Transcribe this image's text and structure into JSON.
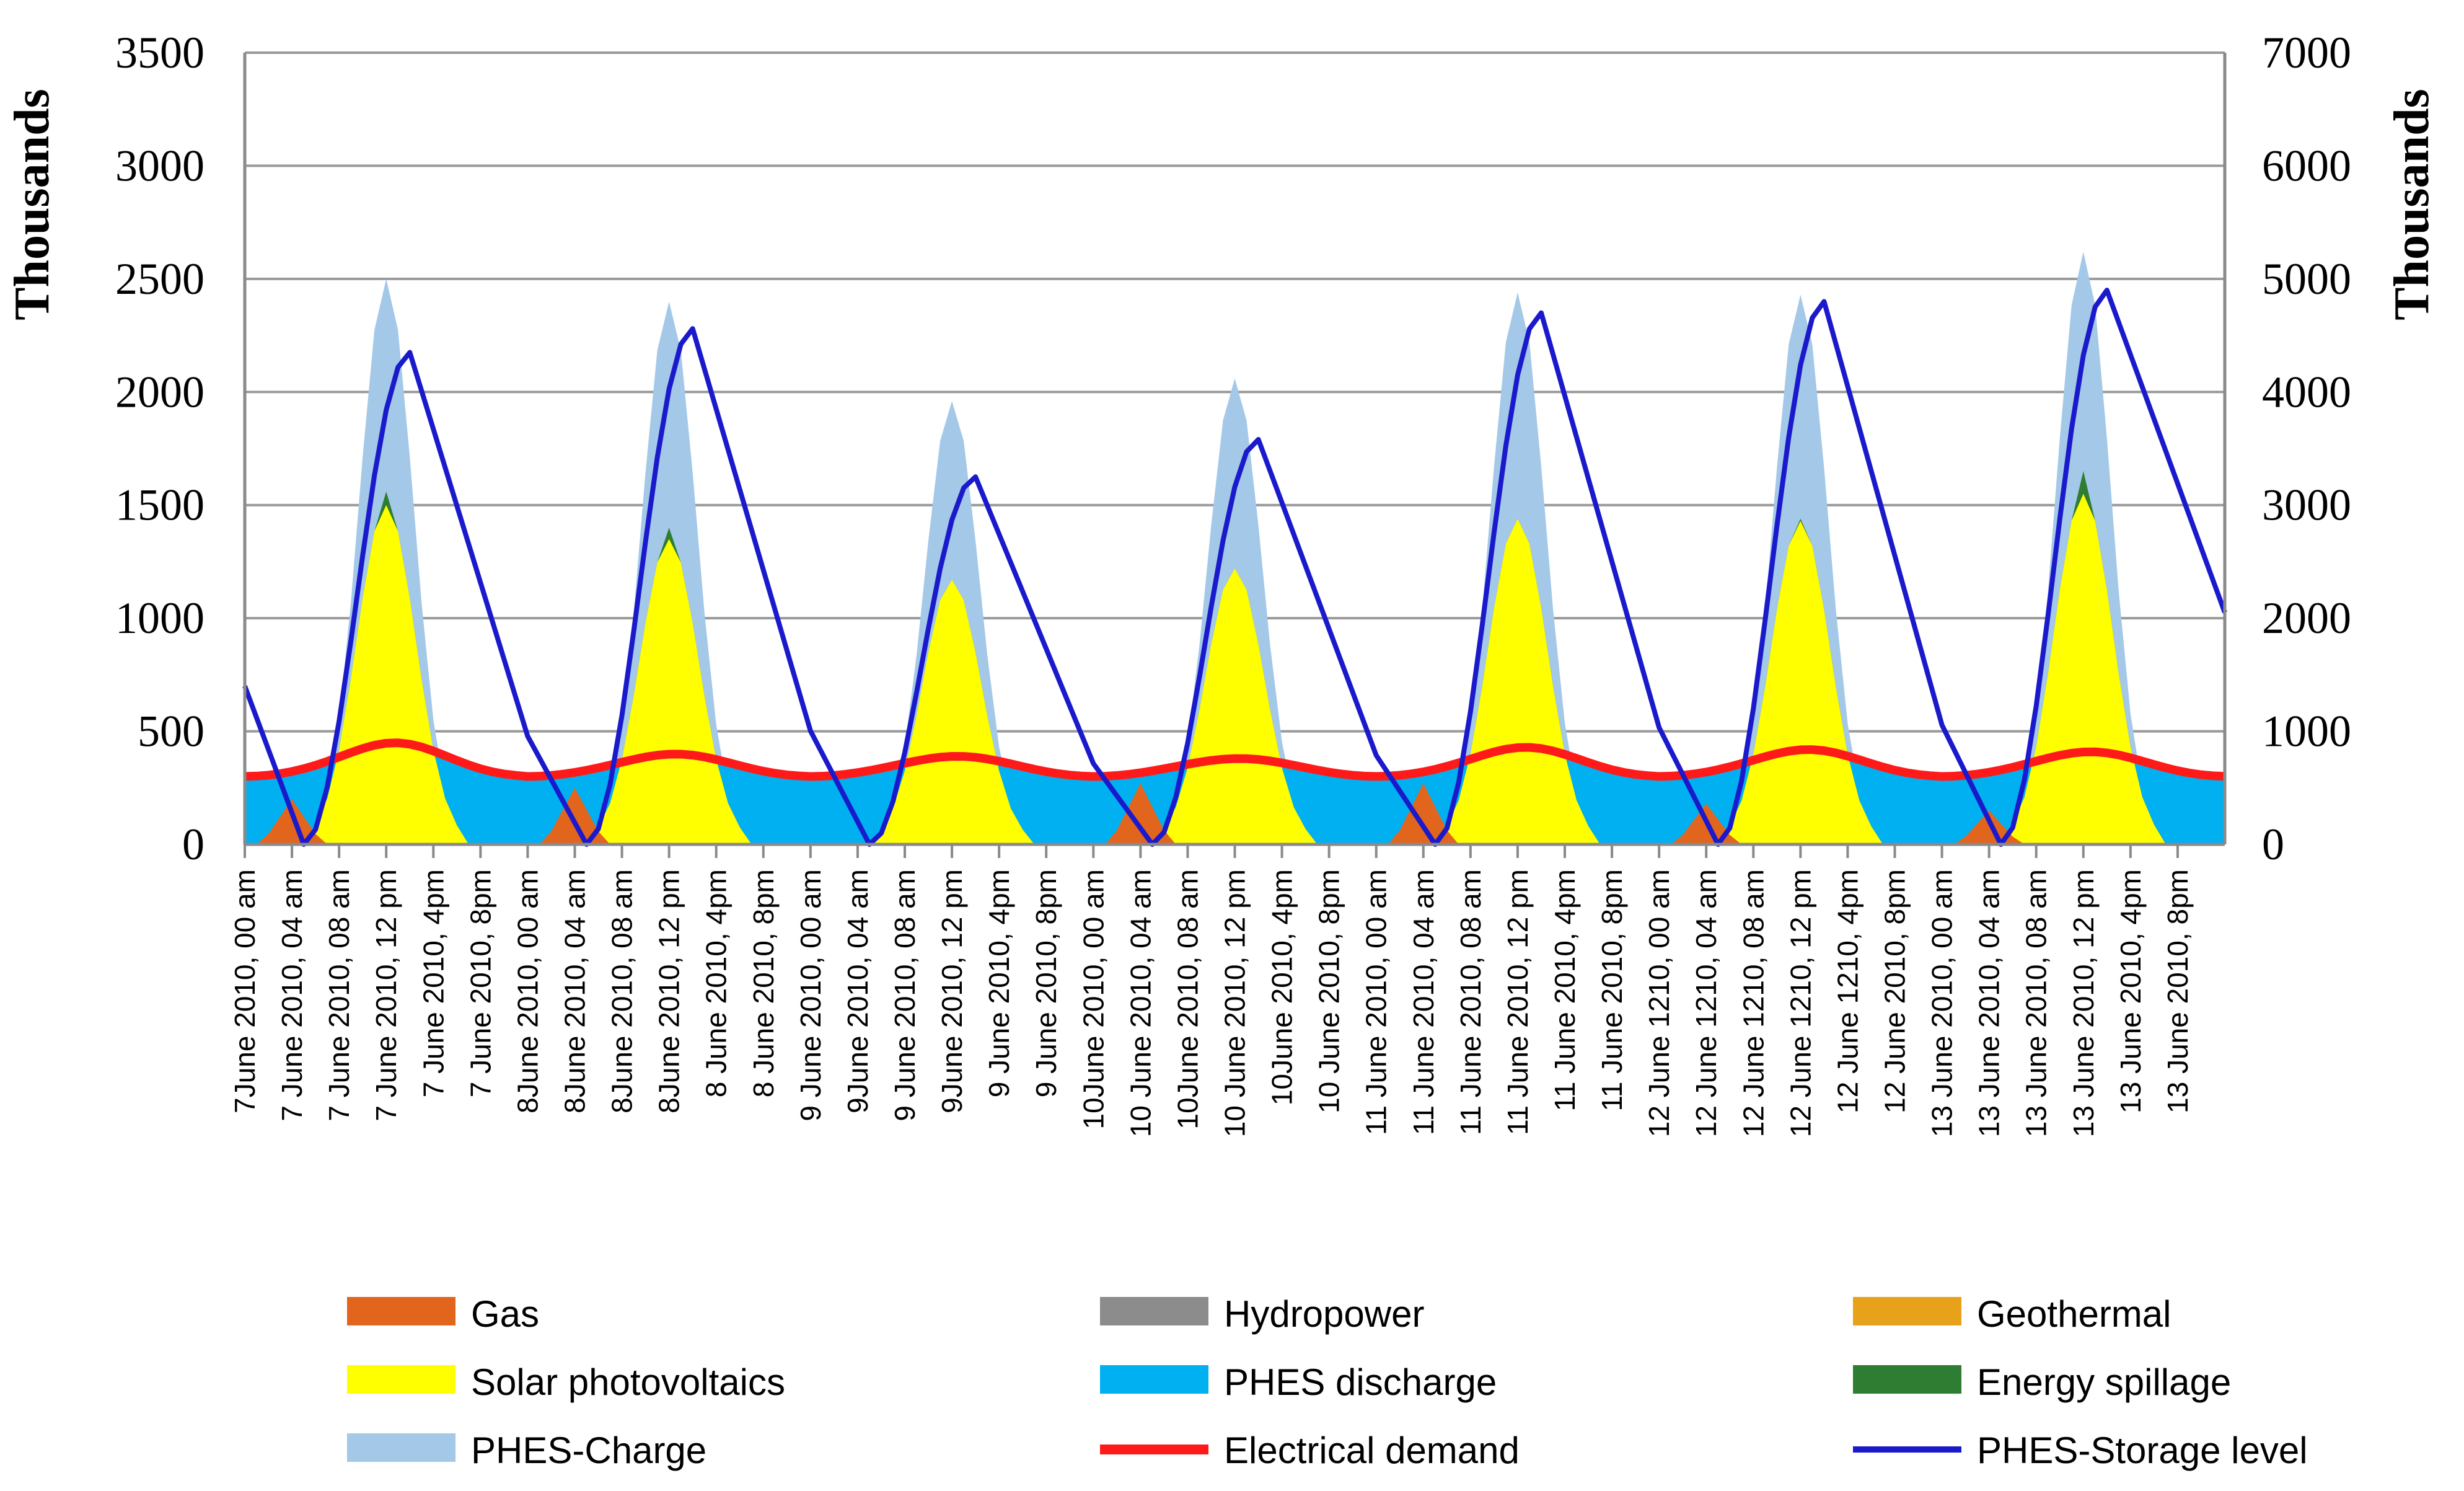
{
  "chart_data": {
    "type": "area",
    "y_left": {
      "label": "Thousands",
      "ylim": [
        0,
        3500
      ],
      "ticks": [
        0,
        500,
        1000,
        1500,
        2000,
        2500,
        3000,
        3500
      ]
    },
    "y_right": {
      "label": "Thousands",
      "ylim": [
        0,
        7000
      ],
      "ticks": [
        0,
        1000,
        2000,
        3000,
        4000,
        5000,
        6000,
        7000
      ]
    },
    "grid": true,
    "legend_position": "bottom",
    "x_hours": 168,
    "x_tick_hours": [
      0,
      4,
      8,
      12,
      16,
      20,
      24,
      28,
      32,
      36,
      40,
      44,
      48,
      52,
      56,
      60,
      64,
      68,
      72,
      76,
      80,
      84,
      88,
      92,
      96,
      100,
      104,
      108,
      112,
      116,
      120,
      124,
      128,
      132,
      136,
      140,
      144,
      148,
      152,
      156,
      160,
      164
    ],
    "x_tick_labels": [
      "7June 2010, 00 am",
      "7 June 2010, 04 am",
      "7 June 2010, 08 am",
      "7 June 2010, 12 pm",
      "7 June 2010, 4pm",
      "7 June 2010, 8pm",
      "8June 2010, 00 am",
      "8June 2010, 04 am",
      "8June 2010, 08 am",
      "8June 2010, 12 pm",
      "8 June 2010, 4pm",
      "8 June 2010, 8pm",
      "9 June 2010, 00 am",
      "9June 2010, 04 am",
      "9 June 2010, 08 am",
      "9June 2010, 12 pm",
      "9 June 2010, 4pm",
      "9 June 2010, 8pm",
      "10June 2010, 00 am",
      "10 June 2010, 04 am",
      "10June 2010, 08 am",
      "10 June 2010, 12 pm",
      "10June 2010, 4pm",
      "10 June 2010, 8pm",
      "11 June 2010, 00 am",
      "11 June 2010, 04 am",
      "11 June 2010, 08 am",
      "11 June 2010, 12 pm",
      "11 June 2010, 4pm",
      "11 June 2010, 8pm",
      "12 June 1210, 00 am",
      "12 June 1210, 04 am",
      "12 June 1210, 08 am",
      "12 June 1210, 12 pm",
      "12 June 1210, 4pm",
      "12 June 2010, 8pm",
      "13 June 2010, 00 am",
      "13 June 2010, 04 am",
      "13 June 2010, 08 am",
      "13 June 2010, 12 pm",
      "13 June 2010, 4pm",
      "13 June 2010, 8pm"
    ],
    "days": [
      {
        "solar_peak": 1500,
        "charge_peak": 2500,
        "storage_peak": 4350,
        "storage_start": 1400,
        "gas": 200,
        "spill": 1560,
        "demand_peak": 470
      },
      {
        "solar_peak": 1350,
        "charge_peak": 2400,
        "storage_peak": 4560,
        "storage_start": 650,
        "gas": 250,
        "spill": 1400,
        "demand_peak": 420
      },
      {
        "solar_peak": 1170,
        "charge_peak": 1960,
        "storage_peak": 3250,
        "storage_start": 560,
        "gas": 0,
        "spill": 1170,
        "demand_peak": 410
      },
      {
        "solar_peak": 1220,
        "charge_peak": 2060,
        "storage_peak": 3580,
        "storage_start": 1000,
        "gas": 270,
        "spill": 1220,
        "demand_peak": 400
      },
      {
        "solar_peak": 1440,
        "charge_peak": 2440,
        "storage_peak": 4700,
        "storage_start": 700,
        "gas": 270,
        "spill": 1440,
        "demand_peak": 450
      },
      {
        "solar_peak": 1430,
        "charge_peak": 2430,
        "storage_peak": 4800,
        "storage_start": 630,
        "gas": 180,
        "spill": 1440,
        "demand_peak": 440
      },
      {
        "solar_peak": 1550,
        "charge_peak": 2620,
        "storage_peak": 4900,
        "storage_start": 600,
        "gas": 150,
        "spill": 1650,
        "demand_peak": 430
      }
    ],
    "storage_end": 2050,
    "legend": [
      {
        "label": "Gas",
        "color": "#e2651e",
        "kind": "box"
      },
      {
        "label": "Hydropower",
        "color": "#8c8c8c",
        "kind": "box"
      },
      {
        "label": "Geothermal",
        "color": "#e7a11a",
        "kind": "box"
      },
      {
        "label": "Solar photovoltaics",
        "color": "#ffff00",
        "kind": "box"
      },
      {
        "label": "PHES discharge",
        "color": "#00b0f0",
        "kind": "box"
      },
      {
        "label": "Energy spillage",
        "color": "#2e7d32",
        "kind": "box"
      },
      {
        "label": "PHES-Charge",
        "color": "#a4c8e8",
        "kind": "box"
      },
      {
        "label": "Electrical demand",
        "color": "#ff1a1a",
        "kind": "line"
      },
      {
        "label": "PHES-Storage level",
        "color": "#1a1acc",
        "kind": "line"
      }
    ]
  }
}
